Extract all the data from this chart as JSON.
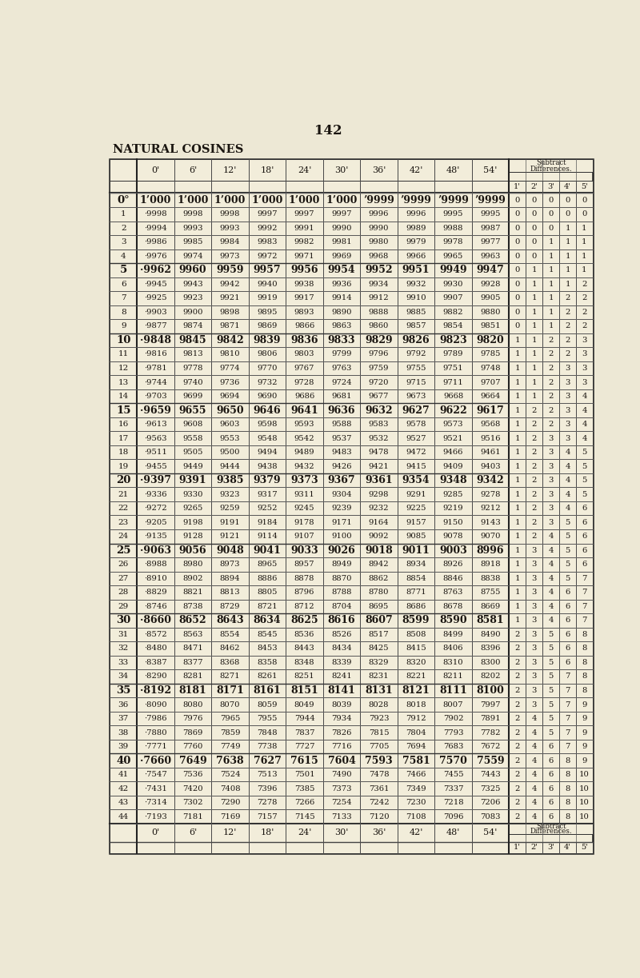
{
  "page_number": "142",
  "title": "NATURAL COSINES",
  "bg_color": "#ede8d5",
  "table_bg": "#f2edda",
  "text_color": "#1a1510",
  "header_cols": [
    "0'",
    "6'",
    "12'",
    "18'",
    "24'",
    "30'",
    "36'",
    "42'",
    "48'",
    "54'"
  ],
  "diff_sub_header": [
    "1'",
    "2'",
    "3'",
    "4'",
    "5'"
  ],
  "rows": [
    {
      "deg": "0°",
      "vals": [
        "1’000",
        "1’000",
        "1’000",
        "1’000",
        "1’000",
        "1’000",
        "’9999",
        "’9999",
        "’9999",
        "’9999"
      ],
      "diffs": [
        "0",
        "0",
        "0",
        "0",
        "0"
      ],
      "bold": true,
      "isolated": true
    },
    {
      "deg": "1",
      "vals": [
        "·9998",
        "9998",
        "9998",
        "9997",
        "9997",
        "9997",
        "9996",
        "9996",
        "9995",
        "9995"
      ],
      "diffs": [
        "0",
        "0",
        "0",
        "0",
        "0"
      ],
      "bold": false,
      "isolated": false
    },
    {
      "deg": "2",
      "vals": [
        "·9994",
        "9993",
        "9993",
        "9992",
        "9991",
        "9990",
        "9990",
        "9989",
        "9988",
        "9987"
      ],
      "diffs": [
        "0",
        "0",
        "0",
        "1",
        "1"
      ],
      "bold": false,
      "isolated": false
    },
    {
      "deg": "3",
      "vals": [
        "·9986",
        "9985",
        "9984",
        "9983",
        "9982",
        "9981",
        "9980",
        "9979",
        "9978",
        "9977"
      ],
      "diffs": [
        "0",
        "0",
        "1",
        "1",
        "1"
      ],
      "bold": false,
      "isolated": false
    },
    {
      "deg": "4",
      "vals": [
        "·9976",
        "9974",
        "9973",
        "9972",
        "9971",
        "9969",
        "9968",
        "9966",
        "9965",
        "9963"
      ],
      "diffs": [
        "0",
        "0",
        "1",
        "1",
        "1"
      ],
      "bold": false,
      "isolated": false
    },
    {
      "deg": "5",
      "vals": [
        "·9962",
        "9960",
        "9959",
        "9957",
        "9956",
        "9954",
        "9952",
        "9951",
        "9949",
        "9947"
      ],
      "diffs": [
        "0",
        "1",
        "1",
        "1",
        "1"
      ],
      "bold": true,
      "isolated": true
    },
    {
      "deg": "6",
      "vals": [
        "·9945",
        "9943",
        "9942",
        "9940",
        "9938",
        "9936",
        "9934",
        "9932",
        "9930",
        "9928"
      ],
      "diffs": [
        "0",
        "1",
        "1",
        "1",
        "2"
      ],
      "bold": false,
      "isolated": false
    },
    {
      "deg": "7",
      "vals": [
        "·9925",
        "9923",
        "9921",
        "9919",
        "9917",
        "9914",
        "9912",
        "9910",
        "9907",
        "9905"
      ],
      "diffs": [
        "0",
        "1",
        "1",
        "2",
        "2"
      ],
      "bold": false,
      "isolated": false
    },
    {
      "deg": "8",
      "vals": [
        "·9903",
        "9900",
        "9898",
        "9895",
        "9893",
        "9890",
        "9888",
        "9885",
        "9882",
        "9880"
      ],
      "diffs": [
        "0",
        "1",
        "1",
        "2",
        "2"
      ],
      "bold": false,
      "isolated": false
    },
    {
      "deg": "9",
      "vals": [
        "·9877",
        "9874",
        "9871",
        "9869",
        "9866",
        "9863",
        "9860",
        "9857",
        "9854",
        "9851"
      ],
      "diffs": [
        "0",
        "1",
        "1",
        "2",
        "2"
      ],
      "bold": false,
      "isolated": false
    },
    {
      "deg": "10",
      "vals": [
        "·9848",
        "9845",
        "9842",
        "9839",
        "9836",
        "9833",
        "9829",
        "9826",
        "9823",
        "9820"
      ],
      "diffs": [
        "1",
        "1",
        "2",
        "2",
        "3"
      ],
      "bold": true,
      "isolated": true
    },
    {
      "deg": "11",
      "vals": [
        "·9816",
        "9813",
        "9810",
        "9806",
        "9803",
        "9799",
        "9796",
        "9792",
        "9789",
        "9785"
      ],
      "diffs": [
        "1",
        "1",
        "2",
        "2",
        "3"
      ],
      "bold": false,
      "isolated": false
    },
    {
      "deg": "12",
      "vals": [
        "·9781",
        "9778",
        "9774",
        "9770",
        "9767",
        "9763",
        "9759",
        "9755",
        "9751",
        "9748"
      ],
      "diffs": [
        "1",
        "1",
        "2",
        "3",
        "3"
      ],
      "bold": false,
      "isolated": false
    },
    {
      "deg": "13",
      "vals": [
        "·9744",
        "9740",
        "9736",
        "9732",
        "9728",
        "9724",
        "9720",
        "9715",
        "9711",
        "9707"
      ],
      "diffs": [
        "1",
        "1",
        "2",
        "3",
        "3"
      ],
      "bold": false,
      "isolated": false
    },
    {
      "deg": "14",
      "vals": [
        "·9703",
        "9699",
        "9694",
        "9690",
        "9686",
        "9681",
        "9677",
        "9673",
        "9668",
        "9664"
      ],
      "diffs": [
        "1",
        "1",
        "2",
        "3",
        "4"
      ],
      "bold": false,
      "isolated": false
    },
    {
      "deg": "15",
      "vals": [
        "·9659",
        "9655",
        "9650",
        "9646",
        "9641",
        "9636",
        "9632",
        "9627",
        "9622",
        "9617"
      ],
      "diffs": [
        "1",
        "2",
        "2",
        "3",
        "4"
      ],
      "bold": true,
      "isolated": true
    },
    {
      "deg": "16",
      "vals": [
        "·9613",
        "9608",
        "9603",
        "9598",
        "9593",
        "9588",
        "9583",
        "9578",
        "9573",
        "9568"
      ],
      "diffs": [
        "1",
        "2",
        "2",
        "3",
        "4"
      ],
      "bold": false,
      "isolated": false
    },
    {
      "deg": "17",
      "vals": [
        "·9563",
        "9558",
        "9553",
        "9548",
        "9542",
        "9537",
        "9532",
        "9527",
        "9521",
        "9516"
      ],
      "diffs": [
        "1",
        "2",
        "3",
        "3",
        "4"
      ],
      "bold": false,
      "isolated": false
    },
    {
      "deg": "18",
      "vals": [
        "·9511",
        "9505",
        "9500",
        "9494",
        "9489",
        "9483",
        "9478",
        "9472",
        "9466",
        "9461"
      ],
      "diffs": [
        "1",
        "2",
        "3",
        "4",
        "5"
      ],
      "bold": false,
      "isolated": false
    },
    {
      "deg": "19",
      "vals": [
        "·9455",
        "9449",
        "9444",
        "9438",
        "9432",
        "9426",
        "9421",
        "9415",
        "9409",
        "9403"
      ],
      "diffs": [
        "1",
        "2",
        "3",
        "4",
        "5"
      ],
      "bold": false,
      "isolated": false
    },
    {
      "deg": "20",
      "vals": [
        "·9397",
        "9391",
        "9385",
        "9379",
        "9373",
        "9367",
        "9361",
        "9354",
        "9348",
        "9342"
      ],
      "diffs": [
        "1",
        "2",
        "3",
        "4",
        "5"
      ],
      "bold": true,
      "isolated": true
    },
    {
      "deg": "21",
      "vals": [
        "·9336",
        "9330",
        "9323",
        "9317",
        "9311",
        "9304",
        "9298",
        "9291",
        "9285",
        "9278"
      ],
      "diffs": [
        "1",
        "2",
        "3",
        "4",
        "5"
      ],
      "bold": false,
      "isolated": false
    },
    {
      "deg": "22",
      "vals": [
        "·9272",
        "9265",
        "9259",
        "9252",
        "9245",
        "9239",
        "9232",
        "9225",
        "9219",
        "9212"
      ],
      "diffs": [
        "1",
        "2",
        "3",
        "4",
        "6"
      ],
      "bold": false,
      "isolated": false
    },
    {
      "deg": "23",
      "vals": [
        "·9205",
        "9198",
        "9191",
        "9184",
        "9178",
        "9171",
        "9164",
        "9157",
        "9150",
        "9143"
      ],
      "diffs": [
        "1",
        "2",
        "3",
        "5",
        "6"
      ],
      "bold": false,
      "isolated": false
    },
    {
      "deg": "24",
      "vals": [
        "·9135",
        "9128",
        "9121",
        "9114",
        "9107",
        "9100",
        "9092",
        "9085",
        "9078",
        "9070"
      ],
      "diffs": [
        "1",
        "2",
        "4",
        "5",
        "6"
      ],
      "bold": false,
      "isolated": false
    },
    {
      "deg": "25",
      "vals": [
        "·9063",
        "9056",
        "9048",
        "9041",
        "9033",
        "9026",
        "9018",
        "9011",
        "9003",
        "8996"
      ],
      "diffs": [
        "1",
        "3",
        "4",
        "5",
        "6"
      ],
      "bold": true,
      "isolated": true
    },
    {
      "deg": "26",
      "vals": [
        "·8988",
        "8980",
        "8973",
        "8965",
        "8957",
        "8949",
        "8942",
        "8934",
        "8926",
        "8918"
      ],
      "diffs": [
        "1",
        "3",
        "4",
        "5",
        "6"
      ],
      "bold": false,
      "isolated": false
    },
    {
      "deg": "27",
      "vals": [
        "·8910",
        "8902",
        "8894",
        "8886",
        "8878",
        "8870",
        "8862",
        "8854",
        "8846",
        "8838"
      ],
      "diffs": [
        "1",
        "3",
        "4",
        "5",
        "7"
      ],
      "bold": false,
      "isolated": false
    },
    {
      "deg": "28",
      "vals": [
        "·8829",
        "8821",
        "8813",
        "8805",
        "8796",
        "8788",
        "8780",
        "8771",
        "8763",
        "8755"
      ],
      "diffs": [
        "1",
        "3",
        "4",
        "6",
        "7"
      ],
      "bold": false,
      "isolated": false
    },
    {
      "deg": "29",
      "vals": [
        "·8746",
        "8738",
        "8729",
        "8721",
        "8712",
        "8704",
        "8695",
        "8686",
        "8678",
        "8669"
      ],
      "diffs": [
        "1",
        "3",
        "4",
        "6",
        "7"
      ],
      "bold": false,
      "isolated": false
    },
    {
      "deg": "30",
      "vals": [
        "·8660",
        "8652",
        "8643",
        "8634",
        "8625",
        "8616",
        "8607",
        "8599",
        "8590",
        "8581"
      ],
      "diffs": [
        "1",
        "3",
        "4",
        "6",
        "7"
      ],
      "bold": true,
      "isolated": true
    },
    {
      "deg": "31",
      "vals": [
        "·8572",
        "8563",
        "8554",
        "8545",
        "8536",
        "8526",
        "8517",
        "8508",
        "8499",
        "8490"
      ],
      "diffs": [
        "2",
        "3",
        "5",
        "6",
        "8"
      ],
      "bold": false,
      "isolated": false
    },
    {
      "deg": "32",
      "vals": [
        "·8480",
        "8471",
        "8462",
        "8453",
        "8443",
        "8434",
        "8425",
        "8415",
        "8406",
        "8396"
      ],
      "diffs": [
        "2",
        "3",
        "5",
        "6",
        "8"
      ],
      "bold": false,
      "isolated": false
    },
    {
      "deg": "33",
      "vals": [
        "·8387",
        "8377",
        "8368",
        "8358",
        "8348",
        "8339",
        "8329",
        "8320",
        "8310",
        "8300"
      ],
      "diffs": [
        "2",
        "3",
        "5",
        "6",
        "8"
      ],
      "bold": false,
      "isolated": false
    },
    {
      "deg": "34",
      "vals": [
        "·8290",
        "8281",
        "8271",
        "8261",
        "8251",
        "8241",
        "8231",
        "8221",
        "8211",
        "8202"
      ],
      "diffs": [
        "2",
        "3",
        "5",
        "7",
        "8"
      ],
      "bold": false,
      "isolated": false
    },
    {
      "deg": "35",
      "vals": [
        "·8192",
        "8181",
        "8171",
        "8161",
        "8151",
        "8141",
        "8131",
        "8121",
        "8111",
        "8100"
      ],
      "diffs": [
        "2",
        "3",
        "5",
        "7",
        "8"
      ],
      "bold": true,
      "isolated": true
    },
    {
      "deg": "36",
      "vals": [
        "·8090",
        "8080",
        "8070",
        "8059",
        "8049",
        "8039",
        "8028",
        "8018",
        "8007",
        "7997"
      ],
      "diffs": [
        "2",
        "3",
        "5",
        "7",
        "9"
      ],
      "bold": false,
      "isolated": false
    },
    {
      "deg": "37",
      "vals": [
        "·7986",
        "7976",
        "7965",
        "7955",
        "7944",
        "7934",
        "7923",
        "7912",
        "7902",
        "7891"
      ],
      "diffs": [
        "2",
        "4",
        "5",
        "7",
        "9"
      ],
      "bold": false,
      "isolated": false
    },
    {
      "deg": "38",
      "vals": [
        "·7880",
        "7869",
        "7859",
        "7848",
        "7837",
        "7826",
        "7815",
        "7804",
        "7793",
        "7782"
      ],
      "diffs": [
        "2",
        "4",
        "5",
        "7",
        "9"
      ],
      "bold": false,
      "isolated": false
    },
    {
      "deg": "39",
      "vals": [
        "·7771",
        "7760",
        "7749",
        "7738",
        "7727",
        "7716",
        "7705",
        "7694",
        "7683",
        "7672"
      ],
      "diffs": [
        "2",
        "4",
        "6",
        "7",
        "9"
      ],
      "bold": false,
      "isolated": false
    },
    {
      "deg": "40",
      "vals": [
        "·7660",
        "7649",
        "7638",
        "7627",
        "7615",
        "7604",
        "7593",
        "7581",
        "7570",
        "7559"
      ],
      "diffs": [
        "2",
        "4",
        "6",
        "8",
        "9"
      ],
      "bold": true,
      "isolated": true
    },
    {
      "deg": "41",
      "vals": [
        "·7547",
        "7536",
        "7524",
        "7513",
        "7501",
        "7490",
        "7478",
        "7466",
        "7455",
        "7443"
      ],
      "diffs": [
        "2",
        "4",
        "6",
        "8",
        "10"
      ],
      "bold": false,
      "isolated": false
    },
    {
      "deg": "42",
      "vals": [
        "·7431",
        "7420",
        "7408",
        "7396",
        "7385",
        "7373",
        "7361",
        "7349",
        "7337",
        "7325"
      ],
      "diffs": [
        "2",
        "4",
        "6",
        "8",
        "10"
      ],
      "bold": false,
      "isolated": false
    },
    {
      "deg": "43",
      "vals": [
        "·7314",
        "7302",
        "7290",
        "7278",
        "7266",
        "7254",
        "7242",
        "7230",
        "7218",
        "7206"
      ],
      "diffs": [
        "2",
        "4",
        "6",
        "8",
        "10"
      ],
      "bold": false,
      "isolated": false
    },
    {
      "deg": "44",
      "vals": [
        "·7193",
        "7181",
        "7169",
        "7157",
        "7145",
        "7133",
        "7120",
        "7108",
        "7096",
        "7083"
      ],
      "diffs": [
        "2",
        "4",
        "6",
        "8",
        "10"
      ],
      "bold": false,
      "isolated": false
    }
  ]
}
